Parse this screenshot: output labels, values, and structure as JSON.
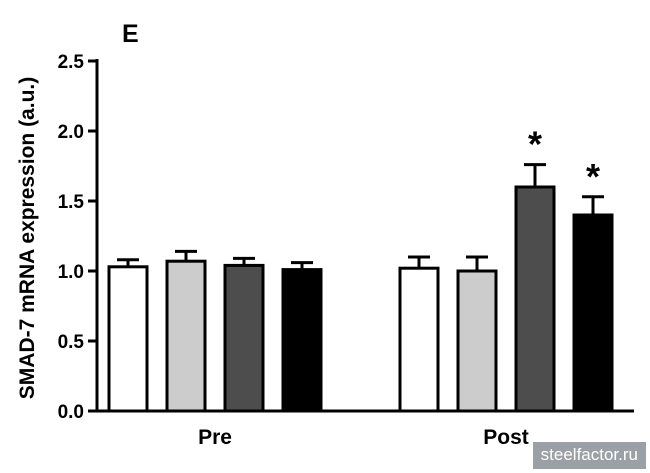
{
  "chart_data": {
    "type": "bar",
    "panel_label": "E",
    "ylabel": "SMAD-7 mRNA expression (a.u.)",
    "xlabel": "",
    "ylim": [
      0,
      2.5
    ],
    "yticks": [
      "0.0",
      "0.5",
      "1.0",
      "1.5",
      "2.0",
      "2.5"
    ],
    "categories": [
      "Pre",
      "Post"
    ],
    "series": [
      {
        "color": "#ffffff",
        "values": [
          1.03,
          1.02
        ],
        "errors": [
          0.05,
          0.08
        ],
        "significant": [
          false,
          false
        ]
      },
      {
        "color": "#cccccc",
        "values": [
          1.07,
          1.0
        ],
        "errors": [
          0.07,
          0.1
        ],
        "significant": [
          false,
          false
        ]
      },
      {
        "color": "#4d4d4d",
        "values": [
          1.04,
          1.6
        ],
        "errors": [
          0.05,
          0.16
        ],
        "significant": [
          false,
          true
        ]
      },
      {
        "color": "#000000",
        "values": [
          1.01,
          1.4
        ],
        "errors": [
          0.05,
          0.13
        ],
        "significant": [
          false,
          true
        ]
      }
    ],
    "significance_marker": "*",
    "grid": false,
    "legend": "none"
  },
  "watermark": "steelfactor.ru"
}
